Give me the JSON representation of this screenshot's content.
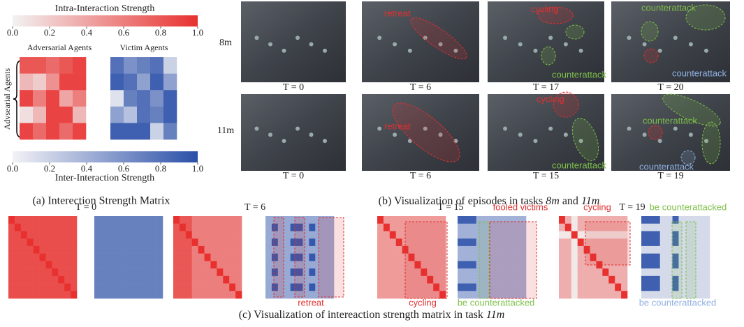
{
  "panel_a": {
    "intra_title": "Intra-Interaction Strength",
    "inter_title": "Inter-Interaction Strength",
    "intra_colors": [
      "#f2f2f2",
      "#e8312f"
    ],
    "inter_colors": [
      "#f2f2f6",
      "#2b50a8"
    ],
    "ticks": [
      {
        "value": 0,
        "label": "0.0"
      },
      0.2,
      0.4,
      0.6,
      0.8,
      {
        "value": 1,
        "label": "1.0"
      }
    ],
    "adversarial_label": "Adversarial Agents",
    "victim_label": "Victim Agents",
    "y_label": "Advsearial Agents",
    "adversarial_matrix": [
      [
        0.8,
        0.8,
        0.7,
        0.8,
        0.9
      ],
      [
        0.3,
        0.2,
        0.5,
        0.9,
        0.9
      ],
      [
        0.9,
        0.6,
        0.9,
        0.4,
        0.6
      ],
      [
        0.1,
        0.3,
        0.9,
        0.9,
        0.3
      ],
      [
        0.9,
        0.7,
        0.9,
        0.7,
        0.9
      ]
    ],
    "victim_matrix": [
      [
        0.8,
        0.6,
        0.7,
        0.8,
        0.2
      ],
      [
        0.9,
        0.8,
        0.5,
        0.9,
        0.5
      ],
      [
        0.1,
        0.7,
        0.8,
        0.6,
        0.9
      ],
      [
        0.5,
        0.3,
        0.8,
        0.7,
        0.9
      ],
      [
        0.9,
        0.9,
        0.9,
        0.2,
        0.7
      ]
    ],
    "caption": "(a) Interection Strength Matrix"
  },
  "panel_b": {
    "rows": [
      {
        "task": "8m",
        "frames": [
          {
            "t": "T = 0",
            "annotations": []
          },
          {
            "t": "T = 6",
            "annotations": [
              "retreat"
            ]
          },
          {
            "t": "T = 17",
            "annotations": [
              "cycling",
              "counterattack"
            ]
          },
          {
            "t": "T = 20",
            "annotations": [
              "counterattack",
              "counterattack"
            ]
          }
        ]
      },
      {
        "task": "11m",
        "frames": [
          {
            "t": "T = 0",
            "annotations": []
          },
          {
            "t": "T = 6",
            "annotations": [
              "retreat"
            ]
          },
          {
            "t": "T = 15",
            "annotations": [
              "cycling",
              "counterattack"
            ]
          },
          {
            "t": "T = 19",
            "annotations": [
              "counterattack",
              "counterattack"
            ]
          }
        ]
      }
    ],
    "caption": [
      "(b) Visualization of episodes in tasks ",
      "8m",
      " and ",
      "11m"
    ]
  },
  "panel_c": {
    "steps": [
      "T = 0",
      "T = 6",
      "T = 15",
      "T = 19"
    ],
    "annotations": [
      "retreat",
      "cycling",
      "fooled victims",
      "be counterattacked",
      "cycling",
      "be counterattacked",
      "be counterattacked"
    ],
    "caption": [
      "(c) Visualization of intereaction strength matrix in task ",
      "11m"
    ]
  }
}
